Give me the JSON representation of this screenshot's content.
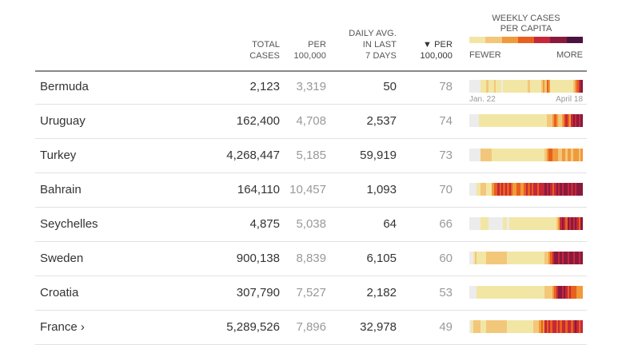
{
  "header": {
    "total_line1": "TOTAL",
    "total_line2": "CASES",
    "per_line1": "PER",
    "per_line2": "100,000",
    "daily_line1": "DAILY AVG.",
    "daily_line2": "IN LAST",
    "daily_line3": "7 DAYS",
    "percap_line1": "▼ PER",
    "percap_line2": "100,000",
    "legend_title_line1": "WEEKLY CASES",
    "legend_title_line2": "PER CAPITA",
    "legend_fewer": "FEWER",
    "legend_more": "MORE"
  },
  "colors": {
    "scale": [
      "#f2e6a5",
      "#f3c77a",
      "#f19a3b",
      "#e8601d",
      "#c6283a",
      "#8a1a3d",
      "#4b1440"
    ],
    "none": "#ececec"
  },
  "dates": {
    "start": "Jan. 22",
    "end": "April 18"
  },
  "rows": [
    {
      "country": "Bermuda",
      "total": "2,123",
      "per": "3,319",
      "daily": "50",
      "percap": "78",
      "strip": [
        0,
        0,
        0,
        0,
        0,
        0,
        1,
        1,
        1,
        2,
        1,
        1,
        1,
        2,
        1,
        1,
        1,
        0,
        1,
        1,
        1,
        1,
        1,
        1,
        1,
        1,
        1,
        1,
        1,
        1,
        1,
        2,
        1,
        1,
        1,
        1,
        1,
        1,
        2,
        3,
        2,
        4,
        3,
        1,
        1,
        1,
        1,
        1,
        1,
        1,
        1,
        1,
        1,
        1,
        1,
        2,
        3,
        4,
        5,
        6
      ]
    },
    {
      "country": "Uruguay",
      "total": "162,400",
      "per": "4,708",
      "daily": "2,537",
      "percap": "74",
      "strip": [
        0,
        0,
        0,
        0,
        0,
        1,
        1,
        1,
        1,
        1,
        1,
        1,
        1,
        1,
        1,
        1,
        1,
        1,
        1,
        1,
        1,
        1,
        1,
        1,
        1,
        1,
        1,
        1,
        1,
        1,
        1,
        1,
        1,
        1,
        1,
        1,
        1,
        1,
        1,
        1,
        1,
        2,
        2,
        2,
        3,
        4,
        3,
        2,
        2,
        3,
        4,
        5,
        4,
        3,
        5,
        6,
        5,
        6,
        5,
        6
      ]
    },
    {
      "country": "Turkey",
      "total": "4,268,447",
      "per": "5,185",
      "daily": "59,919",
      "percap": "73",
      "strip": [
        0,
        0,
        0,
        0,
        0,
        0,
        2,
        2,
        2,
        2,
        2,
        2,
        1,
        1,
        1,
        1,
        1,
        1,
        1,
        1,
        1,
        1,
        1,
        1,
        1,
        1,
        1,
        1,
        1,
        1,
        1,
        1,
        1,
        1,
        1,
        1,
        1,
        1,
        1,
        1,
        2,
        3,
        4,
        4,
        3,
        3,
        3,
        2,
        2,
        3,
        3,
        2,
        3,
        3,
        2,
        3,
        3,
        3,
        2,
        3
      ]
    },
    {
      "country": "Bahrain",
      "total": "164,110",
      "per": "10,457",
      "daily": "1,093",
      "percap": "70",
      "strip": [
        0,
        0,
        0,
        0,
        1,
        1,
        2,
        2,
        2,
        1,
        1,
        1,
        3,
        4,
        4,
        5,
        4,
        5,
        4,
        5,
        4,
        5,
        4,
        3,
        3,
        4,
        4,
        3,
        3,
        4,
        5,
        4,
        5,
        4,
        5,
        5,
        4,
        5,
        5,
        5,
        6,
        5,
        6,
        5,
        4,
        5,
        6,
        5,
        6,
        5,
        6,
        6,
        5,
        6,
        5,
        6,
        5,
        6,
        6,
        6
      ]
    },
    {
      "country": "Seychelles",
      "total": "4,875",
      "per": "5,038",
      "daily": "64",
      "percap": "66",
      "strip": [
        0,
        0,
        0,
        0,
        0,
        0,
        1,
        1,
        1,
        1,
        0,
        0,
        0,
        0,
        0,
        0,
        0,
        0,
        1,
        1,
        0,
        1,
        1,
        1,
        1,
        1,
        1,
        1,
        1,
        1,
        1,
        1,
        1,
        1,
        1,
        1,
        1,
        1,
        1,
        1,
        1,
        1,
        1,
        1,
        1,
        1,
        2,
        3,
        5,
        6,
        5,
        4,
        6,
        5,
        6,
        5,
        6,
        5,
        4,
        6
      ]
    },
    {
      "country": "Sweden",
      "total": "900,138",
      "per": "8,839",
      "daily": "6,105",
      "percap": "60",
      "strip": [
        0,
        0,
        1,
        2,
        1,
        1,
        1,
        1,
        1,
        2,
        2,
        2,
        2,
        2,
        2,
        2,
        2,
        2,
        2,
        2,
        1,
        1,
        1,
        1,
        1,
        1,
        1,
        1,
        1,
        1,
        1,
        1,
        1,
        1,
        1,
        1,
        1,
        1,
        1,
        1,
        2,
        2,
        3,
        4,
        5,
        6,
        6,
        5,
        6,
        5,
        6,
        6,
        5,
        6,
        6,
        5,
        6,
        6,
        5,
        6
      ]
    },
    {
      "country": "Croatia",
      "total": "307,790",
      "per": "7,527",
      "daily": "2,182",
      "percap": "53",
      "strip": [
        0,
        0,
        0,
        0,
        1,
        1,
        1,
        1,
        1,
        1,
        1,
        1,
        1,
        1,
        1,
        1,
        1,
        1,
        1,
        1,
        1,
        1,
        1,
        1,
        1,
        1,
        1,
        1,
        1,
        1,
        1,
        1,
        1,
        1,
        1,
        1,
        1,
        1,
        1,
        1,
        2,
        2,
        2,
        2,
        3,
        4,
        5,
        6,
        6,
        5,
        6,
        5,
        4,
        5,
        4,
        4,
        4,
        3,
        3,
        3
      ]
    },
    {
      "country": "France ›",
      "total": "5,289,526",
      "per": "7,896",
      "daily": "32,978",
      "percap": "49",
      "strip": [
        0,
        1,
        2,
        2,
        2,
        2,
        1,
        1,
        1,
        2,
        2,
        2,
        2,
        2,
        2,
        2,
        2,
        2,
        2,
        2,
        1,
        1,
        1,
        1,
        1,
        1,
        1,
        1,
        1,
        1,
        1,
        1,
        1,
        1,
        2,
        2,
        2,
        3,
        4,
        3,
        5,
        4,
        5,
        4,
        5,
        5,
        4,
        5,
        4,
        5,
        5,
        4,
        5,
        5,
        4,
        5,
        6,
        5,
        4,
        5
      ]
    }
  ]
}
